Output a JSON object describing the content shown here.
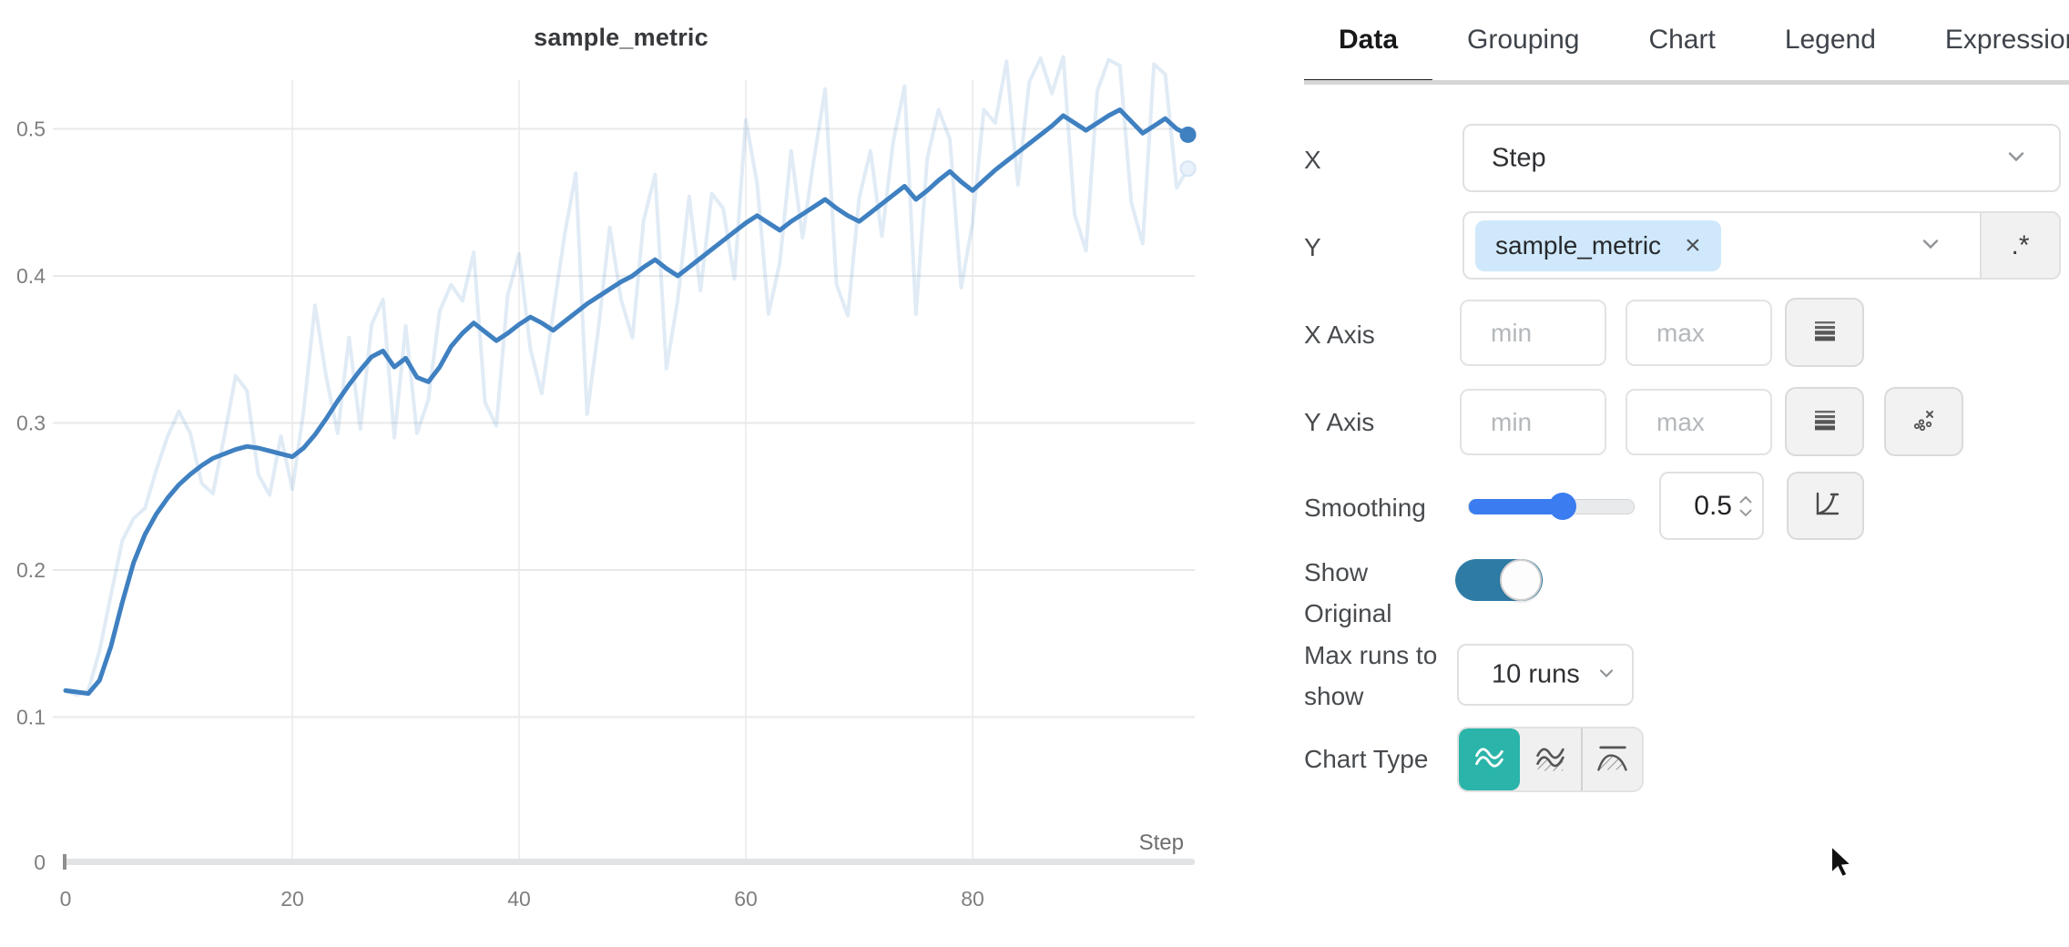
{
  "chart": {
    "title": "sample_metric",
    "x_axis_label": "Step"
  },
  "chart_data": {
    "type": "line",
    "title": "sample_metric",
    "xlabel": "Step",
    "ylabel": "",
    "x_range": [
      0,
      99
    ],
    "ylim": [
      0,
      0.55
    ],
    "x_ticks": [
      0,
      20,
      40,
      60,
      80
    ],
    "y_ticks": [
      0,
      0.1,
      0.2,
      0.3,
      0.4,
      0.5
    ],
    "grid": true,
    "legend": "none",
    "series": [
      {
        "name": "sample_metric (original)",
        "role": "original",
        "color": "rgba(63,128,193,0.16)",
        "width": 4,
        "values": [
          0.118,
          0.115,
          0.118,
          0.145,
          0.183,
          0.22,
          0.235,
          0.242,
          0.268,
          0.291,
          0.308,
          0.293,
          0.259,
          0.252,
          0.291,
          0.332,
          0.322,
          0.265,
          0.251,
          0.291,
          0.255,
          0.308,
          0.38,
          0.331,
          0.293,
          0.358,
          0.296,
          0.367,
          0.384,
          0.29,
          0.366,
          0.293,
          0.316,
          0.376,
          0.394,
          0.383,
          0.416,
          0.314,
          0.298,
          0.387,
          0.415,
          0.35,
          0.32,
          0.375,
          0.427,
          0.47,
          0.306,
          0.364,
          0.433,
          0.384,
          0.358,
          0.438,
          0.469,
          0.337,
          0.384,
          0.454,
          0.39,
          0.456,
          0.446,
          0.398,
          0.506,
          0.463,
          0.374,
          0.409,
          0.485,
          0.426,
          0.479,
          0.527,
          0.394,
          0.373,
          0.453,
          0.485,
          0.427,
          0.491,
          0.529,
          0.374,
          0.48,
          0.513,
          0.493,
          0.392,
          0.436,
          0.513,
          0.504,
          0.546,
          0.462,
          0.532,
          0.548,
          0.524,
          0.549,
          0.442,
          0.417,
          0.526,
          0.547,
          0.543,
          0.45,
          0.422,
          0.544,
          0.537,
          0.46,
          0.473
        ]
      },
      {
        "name": "sample_metric (smoothed 0.5)",
        "role": "smoothed",
        "color": "#3f80c1",
        "width": 5,
        "values": [
          0.118,
          0.117,
          0.116,
          0.125,
          0.148,
          0.178,
          0.205,
          0.224,
          0.238,
          0.249,
          0.258,
          0.265,
          0.271,
          0.276,
          0.279,
          0.282,
          0.284,
          0.283,
          0.281,
          0.279,
          0.277,
          0.283,
          0.292,
          0.303,
          0.315,
          0.326,
          0.336,
          0.345,
          0.349,
          0.338,
          0.344,
          0.331,
          0.328,
          0.338,
          0.352,
          0.361,
          0.368,
          0.362,
          0.356,
          0.361,
          0.367,
          0.372,
          0.368,
          0.363,
          0.369,
          0.375,
          0.381,
          0.386,
          0.391,
          0.396,
          0.4,
          0.406,
          0.411,
          0.405,
          0.4,
          0.406,
          0.412,
          0.418,
          0.424,
          0.43,
          0.436,
          0.441,
          0.436,
          0.431,
          0.437,
          0.442,
          0.447,
          0.452,
          0.446,
          0.441,
          0.437,
          0.443,
          0.449,
          0.455,
          0.461,
          0.452,
          0.458,
          0.465,
          0.471,
          0.464,
          0.458,
          0.465,
          0.472,
          0.478,
          0.484,
          0.49,
          0.496,
          0.502,
          0.509,
          0.504,
          0.499,
          0.504,
          0.509,
          0.513,
          0.505,
          0.497,
          0.502,
          0.507,
          0.5,
          0.496
        ]
      }
    ]
  },
  "panel": {
    "tabs": [
      {
        "label": "Data",
        "active": true
      },
      {
        "label": "Grouping",
        "active": false
      },
      {
        "label": "Chart",
        "active": false
      },
      {
        "label": "Legend",
        "active": false
      },
      {
        "label": "Expressions",
        "active": false
      }
    ],
    "x_row": {
      "label": "X",
      "value": "Step"
    },
    "y_row": {
      "label": "Y",
      "selected_metric": "sample_metric",
      "remove_icon": "×",
      "regex_button": ".*"
    },
    "x_axis_row": {
      "label": "X Axis",
      "min_placeholder": "min",
      "max_placeholder": "max"
    },
    "y_axis_row": {
      "label": "Y Axis",
      "min_placeholder": "min",
      "max_placeholder": "max"
    },
    "smoothing_row": {
      "label": "Smoothing",
      "value": "0.5"
    },
    "show_original_row": {
      "label": "Show Original",
      "enabled": true
    },
    "max_runs_row": {
      "label": "Max runs to show",
      "value": "10 runs"
    },
    "chart_type_row": {
      "label": "Chart Type",
      "selected_index": 0
    }
  },
  "colors": {
    "run_line": "#3f80c1",
    "original_line": "rgba(63,128,193,0.16)",
    "slider_fill": "#3b7cf0",
    "toggle_on": "#2e7ca6",
    "chart_type_active": "#2bb4a9",
    "tag_background": "#cfe8fb",
    "gridline": "#e8e9ea",
    "axis_bar": "#e2e3e4",
    "tick_text": "#7f7f7f"
  }
}
